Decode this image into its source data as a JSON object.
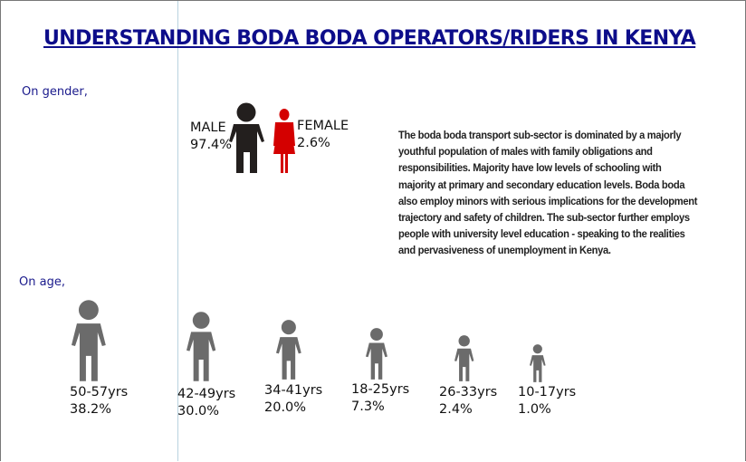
{
  "title": "UNDERSTANDING BODA BODA OPERATORS/RIDERS IN KENYA",
  "gender": {
    "heading": "On gender,",
    "male": {
      "label": "MALE",
      "value": "97.4%",
      "color": "#231f1e"
    },
    "female": {
      "label": "FEMALE",
      "value": "2.6%",
      "color": "#d40000"
    }
  },
  "description_lines": [
    "The boda boda transport sub-sector is dominated by a majorly",
    "youthful population of males with family obligations and",
    "responsibilities. Majority have low levels of schooling with",
    "majority at primary and secondary education levels. Boda boda",
    "also employ minors with serious implications for the development",
    "trajectory and safety of children. The sub-sector further employs",
    "people with university level education - speaking to the realities",
    "and pervasiveness of unemployment in Kenya."
  ],
  "age": {
    "heading": "On age,",
    "color": "#6b6b6b",
    "groups": [
      {
        "range": "50-57yrs",
        "value": "38.2%"
      },
      {
        "range": "42-49yrs",
        "value": "30.0%"
      },
      {
        "range": "34-41yrs",
        "value": "20.0%"
      },
      {
        "range": "18-25yrs",
        "value": "7.3%"
      },
      {
        "range": "26-33yrs",
        "value": "2.4%"
      },
      {
        "range": "10-17yrs",
        "value": "1.0%"
      }
    ]
  }
}
